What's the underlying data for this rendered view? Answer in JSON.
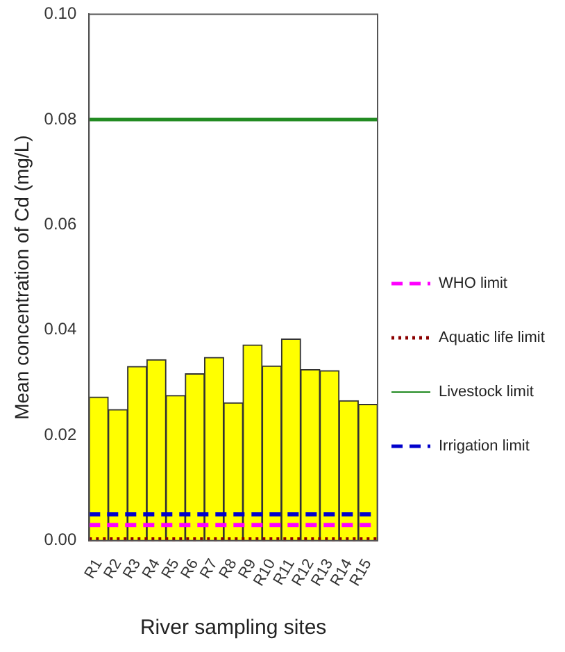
{
  "chart_data": {
    "type": "bar",
    "xlabel": "River sampling sites",
    "ylabel": "Mean concentration of Cd (mg/L)",
    "categories": [
      "R1",
      "R2",
      "R3",
      "R4",
      "R5",
      "R6",
      "R7",
      "R8",
      "R9",
      "R10",
      "R11",
      "R12",
      "R13",
      "R14",
      "R15"
    ],
    "values": [
      0.0273,
      0.0249,
      0.0331,
      0.0344,
      0.0276,
      0.0317,
      0.0348,
      0.0262,
      0.0372,
      0.0332,
      0.0383,
      0.0325,
      0.0323,
      0.0266,
      0.0259
    ],
    "color": "#ffff00",
    "ylim": [
      0,
      0.1
    ],
    "yticks": [
      {
        "value": 0,
        "label": "0.00"
      },
      {
        "value": 0.02,
        "label": "0.02"
      },
      {
        "value": 0.04,
        "label": "0.04"
      },
      {
        "value": 0.06,
        "label": "0.06"
      },
      {
        "value": 0.08,
        "label": "0.08"
      },
      {
        "value": 0.1,
        "label": "0.10"
      }
    ],
    "grid": false,
    "legend": "right",
    "ref_lines": [
      {
        "axis": "y",
        "value": 0.003,
        "label": "WHO limit",
        "color": "#ff00ff",
        "line_style": "dashed"
      },
      {
        "axis": "y",
        "value": 0.00025,
        "label": "Aquatic life limit",
        "color": "#8b0000",
        "line_style": "dotted"
      },
      {
        "axis": "y",
        "value": 0.08,
        "label": "Livestock limit",
        "color": "#228b22",
        "line_style": "solid"
      },
      {
        "axis": "y",
        "value": 0.005,
        "label": "Irrigation limit",
        "color": "#0000cc",
        "line_style": "dashed"
      }
    ]
  }
}
